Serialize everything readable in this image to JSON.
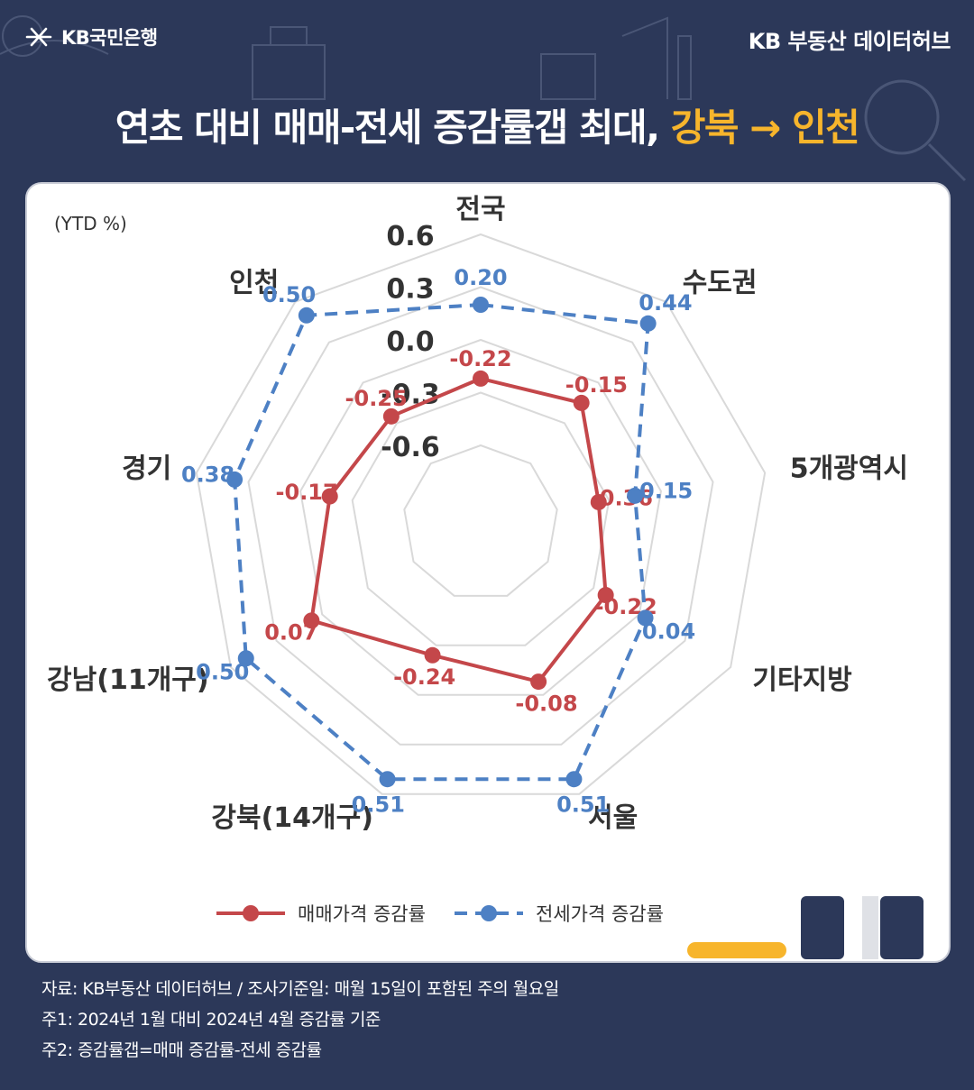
{
  "header": {
    "logo_text": "KB국민은행",
    "brand": "KB 부동산  데이터허브",
    "title_main": "연초 대비 매매-전세 증감률갭 최대, ",
    "title_highlight": "강북 → 인천"
  },
  "colors": {
    "background": "#2c3859",
    "accent": "#f7b52c",
    "sale": "#c4474a",
    "jeonse": "#4d80c4"
  },
  "icons": [
    "kb-star-logo-icon",
    "city-buildings-icon",
    "magnifier-icon"
  ],
  "chart_data": {
    "type": "radar",
    "unit_label": "(YTD %)",
    "categories": [
      "전국",
      "수도권",
      "5개광역시",
      "기타지방",
      "서울",
      "강북(14개구)",
      "강남(11개구)",
      "경기",
      "인천"
    ],
    "axis_ticks": [
      {
        "value": -0.6,
        "label": "-0.6"
      },
      {
        "value": -0.3,
        "label": "-0.3"
      },
      {
        "value": 0.0,
        "label": "0.0"
      },
      {
        "value": 0.3,
        "label": "0.3"
      },
      {
        "value": 0.6,
        "label": "0.6"
      }
    ],
    "range": [
      -0.6,
      0.6
    ],
    "grid": true,
    "legend_position": "bottom",
    "series": [
      {
        "name": "매매가격 증감률",
        "style": "solid",
        "color": "#c4474a",
        "values": [
          -0.22,
          -0.15,
          -0.36,
          -0.22,
          -0.08,
          -0.24,
          0.07,
          -0.17,
          -0.25
        ],
        "labels": [
          "-0.22",
          "-0.15",
          "-0.36",
          "-0.22",
          "-0.08",
          "-0.24",
          "0.07",
          "-0.17",
          "-0.25"
        ]
      },
      {
        "name": "전세가격 증감률",
        "style": "dashed",
        "color": "#4d80c4",
        "values": [
          0.2,
          0.44,
          -0.15,
          0.04,
          0.51,
          0.51,
          0.5,
          0.38,
          0.5
        ],
        "labels": [
          "0.20",
          "0.44",
          "-0.15",
          "0.04",
          "0.51",
          "0.51",
          "0.50",
          "0.38",
          "0.50"
        ]
      }
    ]
  },
  "footnotes": [
    "자료: KB부동산 데이터허브 / 조사기준일: 매월 15일이 포함된 주의 월요일",
    "주1: 2024년 1월 대비 2024년 4월 증감률 기준",
    "주2: 증감률갭=매매 증감률-전세 증감률"
  ]
}
